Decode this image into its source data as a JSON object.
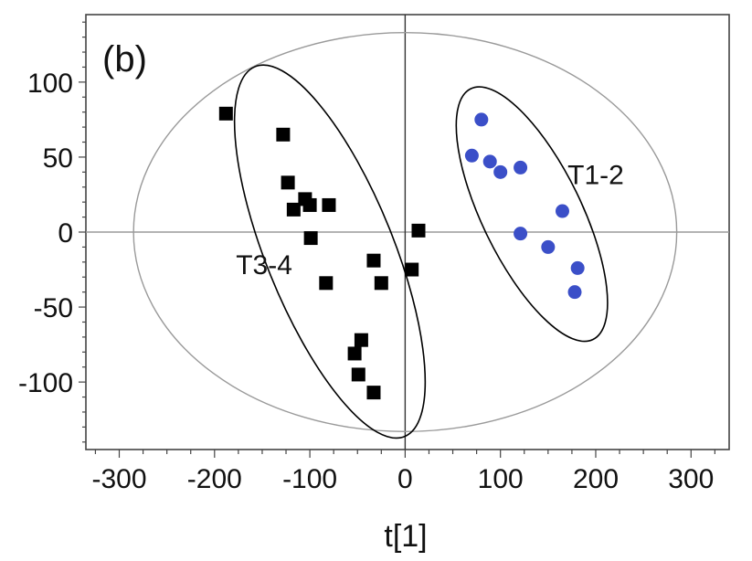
{
  "chart_data": {
    "type": "scatter",
    "panel_label": "(b)",
    "xlabel": "t[1]",
    "ylabel": "",
    "xlim": [
      -335,
      340
    ],
    "ylim": [
      -145,
      145
    ],
    "xticks": [
      -300,
      -200,
      -100,
      0,
      100,
      200,
      300
    ],
    "yticks": [
      100,
      50,
      0,
      -50,
      -100
    ],
    "series": [
      {
        "marker": "square",
        "color": "#000000",
        "points": [
          [
            -188,
            79
          ],
          [
            -128,
            65
          ],
          [
            -123,
            33
          ],
          [
            -117,
            15
          ],
          [
            -105,
            22
          ],
          [
            -100,
            18
          ],
          [
            -80,
            18
          ],
          [
            -99,
            -4
          ],
          [
            -83,
            -34
          ],
          [
            -33,
            -19
          ],
          [
            -25,
            -34
          ],
          [
            7,
            -25
          ],
          [
            14,
            1
          ],
          [
            -46,
            -72
          ],
          [
            -53,
            -81
          ],
          [
            -49,
            -95
          ],
          [
            -33,
            -107
          ]
        ]
      },
      {
        "marker": "circle",
        "color": "#3b4fc8",
        "points": [
          [
            80,
            75
          ],
          [
            70,
            51
          ],
          [
            89,
            47
          ],
          [
            100,
            40
          ],
          [
            121,
            43
          ],
          [
            165,
            14
          ],
          [
            121,
            -1
          ],
          [
            150,
            -10
          ],
          [
            181,
            -24
          ],
          [
            178,
            -40
          ]
        ]
      }
    ],
    "annotations": [
      {
        "text": "T3-4",
        "x": -148,
        "y": -22
      },
      {
        "text": "T1-2",
        "x": 200,
        "y": 38
      }
    ],
    "ellipses": [
      {
        "name": "hotelling-ellipse",
        "cx": 0,
        "cy": 0,
        "rx": 285,
        "ry": 133,
        "angle": 0,
        "color": "#9a9a9a"
      },
      {
        "name": "group-t3-4-ellipse",
        "cx": -79,
        "cy": -13,
        "rx": 67,
        "ry": 133,
        "angle": -22,
        "color": "#000000"
      },
      {
        "name": "group-t1-2-ellipse",
        "cx": 133,
        "cy": 12,
        "rx": 52,
        "ry": 93,
        "angle": -26,
        "color": "#000000"
      }
    ],
    "reference_lines": {
      "x0": true,
      "y0": true,
      "color": "#9a9a9a"
    },
    "grid": false
  }
}
